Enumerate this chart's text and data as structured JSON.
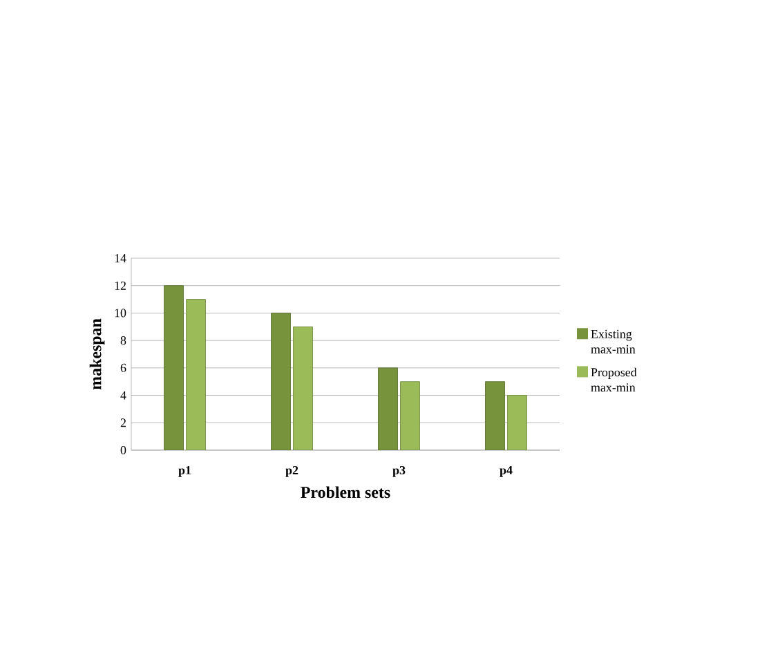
{
  "chart_data": {
    "type": "bar",
    "xlabel": "Problem sets",
    "ylabel": "makespan",
    "categories": [
      "p1",
      "p2",
      "p3",
      "p4"
    ],
    "series": [
      {
        "name": "Existing max-min",
        "color": "#77933c",
        "values": [
          12,
          10,
          6,
          5
        ]
      },
      {
        "name": "Proposed max-min",
        "color": "#9bbb59",
        "values": [
          11,
          9,
          5,
          4
        ]
      }
    ],
    "ylim": [
      0,
      14
    ],
    "yticks": [
      0,
      2,
      4,
      6,
      8,
      10,
      12,
      14
    ],
    "grid": "y",
    "legend": "right"
  }
}
